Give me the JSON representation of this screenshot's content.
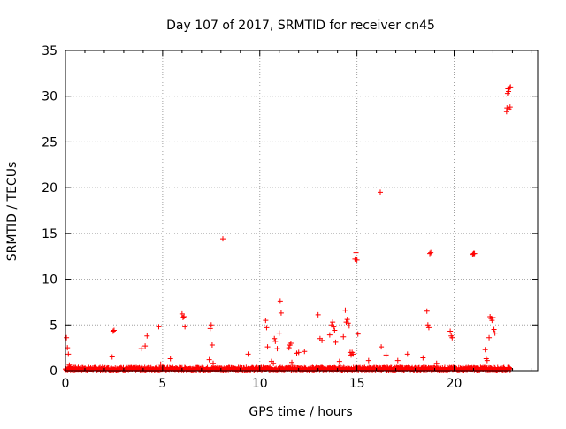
{
  "chart_data": {
    "type": "scatter",
    "title": "Day 107 of 2017, SRMTID for receiver cn45",
    "xlabel": "GPS time / hours",
    "ylabel": "SRMTID / TECUs",
    "xlim": [
      0,
      24.3
    ],
    "ylim": [
      0,
      35
    ],
    "xticks": [
      0,
      5,
      10,
      15,
      20
    ],
    "yticks": [
      0,
      5,
      10,
      15,
      20,
      25,
      30,
      35
    ],
    "grid": true,
    "marker": "+",
    "colors": {
      "points": "#ff0000",
      "axes": "#000000",
      "grid": "#a0a0a0"
    },
    "series": [
      {
        "x": [
          0.05,
          0.1,
          0.15,
          0.2,
          0.25,
          0.3,
          2.4,
          2.45,
          2.5,
          3.9,
          4.1,
          4.2,
          4.8,
          4.9,
          5.0,
          5.4,
          6.0,
          6.05,
          6.1,
          6.15,
          7.4,
          7.45,
          7.5,
          7.55,
          7.6,
          8.1,
          9.4,
          10.3,
          10.35,
          10.4,
          10.6,
          10.7,
          10.75,
          10.8,
          10.9,
          11.0,
          11.05,
          11.1,
          11.5,
          11.55,
          11.6,
          11.65,
          11.9,
          12.0,
          12.3,
          13.0,
          13.1,
          13.2,
          13.6,
          13.7,
          13.75,
          13.8,
          13.85,
          13.9,
          14.1,
          14.3,
          14.4,
          14.45,
          14.5,
          14.55,
          14.6,
          14.65,
          14.7,
          14.75,
          14.8,
          14.9,
          14.95,
          15.0,
          15.05,
          15.6,
          16.2,
          16.25,
          16.5,
          17.1,
          17.6,
          18.4,
          18.6,
          18.65,
          18.7,
          18.75,
          18.8,
          19.1,
          19.8,
          19.85,
          19.9,
          20.95,
          21.0,
          21.05,
          21.6,
          21.65,
          21.7,
          21.8,
          21.85,
          21.9,
          21.95,
          22.0,
          22.05,
          22.1,
          22.7,
          22.72,
          22.75,
          22.77,
          22.8,
          22.82,
          22.85,
          22.88,
          22.9
        ],
        "y": [
          3.6,
          2.5,
          1.8,
          0.6,
          0.3,
          0.2,
          1.5,
          4.3,
          4.4,
          2.4,
          2.7,
          3.8,
          4.8,
          0.7,
          0.5,
          1.3,
          6.2,
          5.8,
          5.9,
          4.8,
          1.2,
          4.6,
          5.0,
          2.8,
          0.8,
          14.4,
          1.8,
          5.5,
          4.7,
          2.6,
          1.0,
          0.8,
          3.5,
          3.2,
          2.4,
          4.1,
          7.6,
          6.3,
          2.5,
          2.8,
          3.0,
          0.9,
          1.9,
          2.0,
          2.1,
          6.1,
          3.5,
          3.3,
          3.9,
          5.0,
          5.3,
          4.8,
          4.4,
          3.1,
          1.0,
          3.7,
          6.6,
          5.3,
          5.6,
          5.2,
          4.9,
          2.0,
          1.7,
          2.0,
          1.8,
          12.2,
          12.9,
          12.1,
          4.0,
          1.1,
          19.5,
          2.6,
          1.7,
          1.1,
          1.8,
          1.4,
          6.5,
          5.0,
          4.7,
          12.8,
          12.9,
          0.8,
          4.3,
          3.8,
          3.6,
          12.7,
          12.8,
          12.8,
          2.3,
          1.3,
          1.1,
          3.6,
          5.9,
          5.7,
          5.5,
          5.8,
          4.5,
          4.1,
          28.3,
          28.7,
          30.3,
          30.8,
          30.5,
          28.6,
          30.9,
          28.8,
          31.0
        ]
      }
    ],
    "baseline_band": {
      "x_start": 0,
      "x_end": 22.9,
      "y_min": 0,
      "y_max": 0.35
    }
  }
}
